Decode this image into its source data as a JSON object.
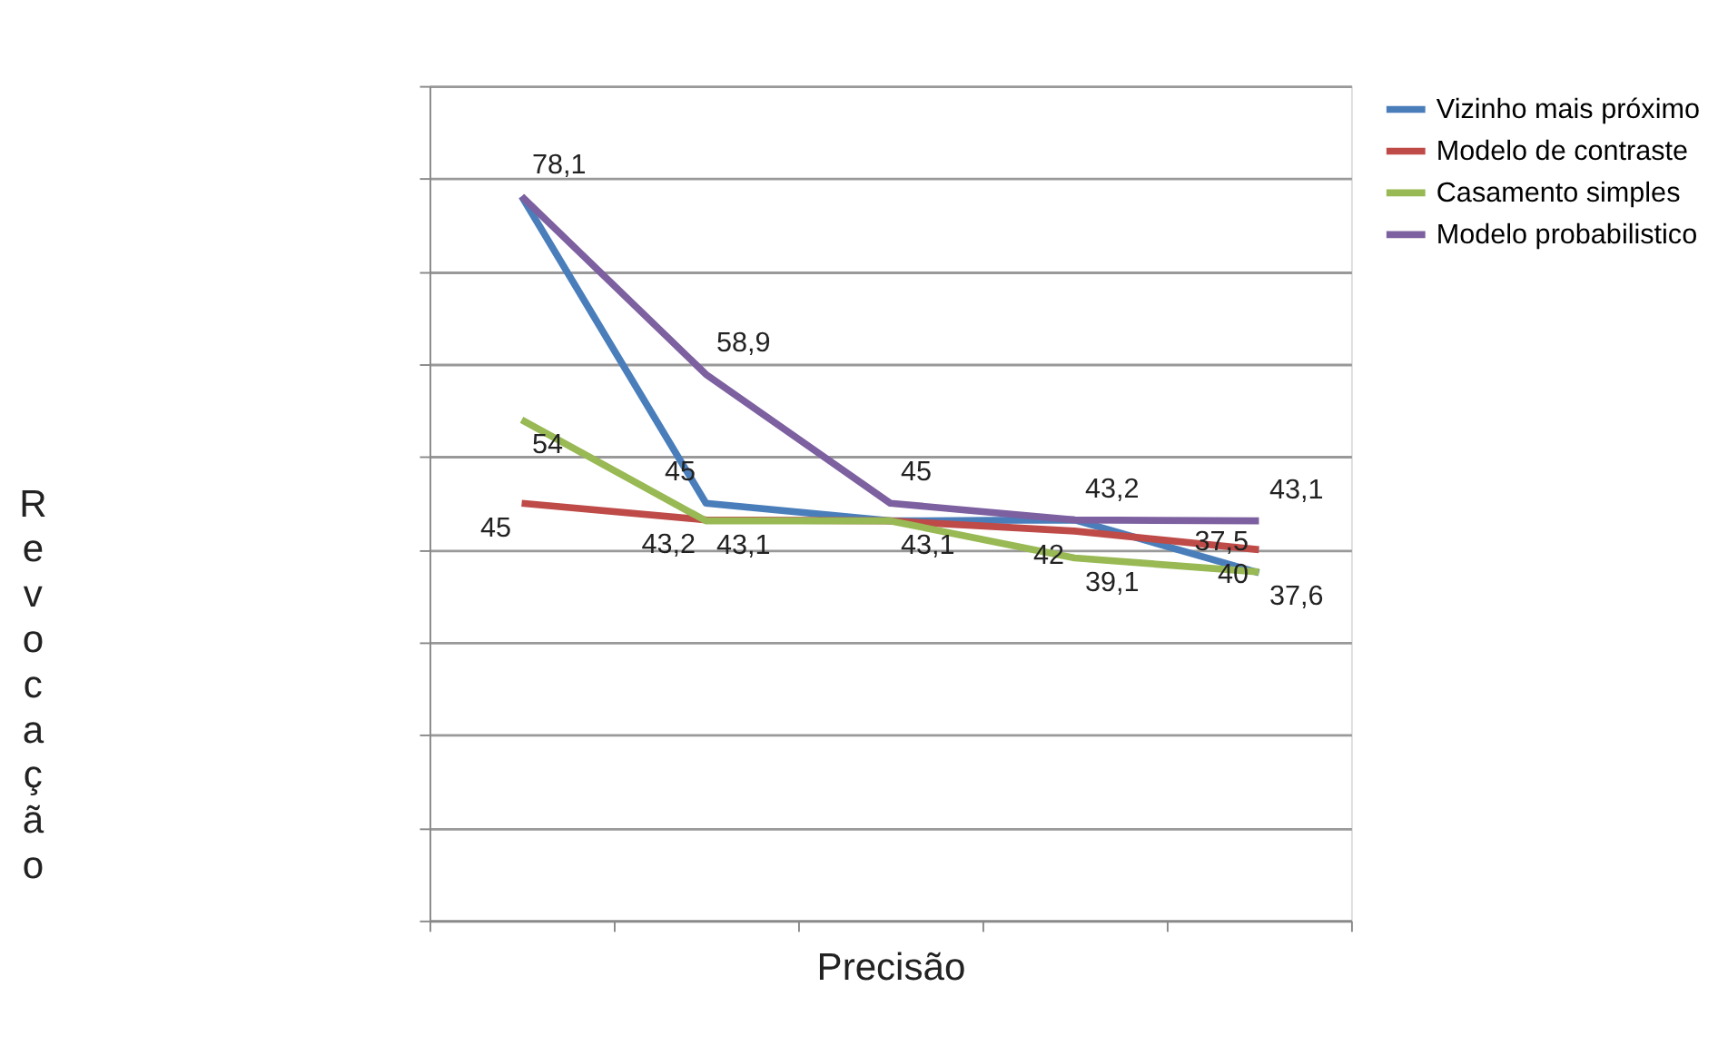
{
  "chart_data": {
    "type": "line",
    "xlabel": "Precisão",
    "ylabel": "Revocação",
    "categories": [
      null,
      null,
      null,
      null,
      null
    ],
    "ylim": [
      0,
      90
    ],
    "yticks": [
      {
        "value": 0,
        "label": null
      },
      {
        "value": 10,
        "label": null
      },
      {
        "value": 20,
        "label": null
      },
      {
        "value": 30,
        "label": null
      },
      {
        "value": 40,
        "label": null
      },
      {
        "value": 50,
        "label": null
      },
      {
        "value": 60,
        "label": null
      },
      {
        "value": 70,
        "label": null
      },
      {
        "value": 80,
        "label": null
      },
      {
        "value": 90,
        "label": null
      }
    ],
    "tick_labels": false,
    "grid": "y",
    "legend": "right",
    "marker": "none",
    "line_style": "solid",
    "series": [
      {
        "name": "Vizinho mais próximo",
        "color": "#4a7ebb",
        "values": [
          78.1,
          45,
          43.1,
          43.2,
          37.5
        ],
        "value_labels": [
          null,
          "45",
          null,
          null,
          "37,5"
        ]
      },
      {
        "name": "Modelo de contraste",
        "color": "#be4b48",
        "values": [
          45,
          43.2,
          43.1,
          42,
          40
        ],
        "value_labels": [
          "45",
          "43,2",
          null,
          "42",
          "40"
        ]
      },
      {
        "name": "Casamento simples",
        "color": "#98b954",
        "values": [
          54,
          43.1,
          43.1,
          39.1,
          37.6
        ],
        "value_labels": [
          "54",
          "43,1",
          "43,1",
          "39,1",
          "37,6"
        ]
      },
      {
        "name": "Modelo probabilistico",
        "color": "#7d60a0",
        "values": [
          78.1,
          58.9,
          45,
          43.2,
          43.1
        ],
        "value_labels": [
          "78,1",
          "58,9",
          "45",
          "43,2",
          "43,1"
        ]
      }
    ]
  }
}
